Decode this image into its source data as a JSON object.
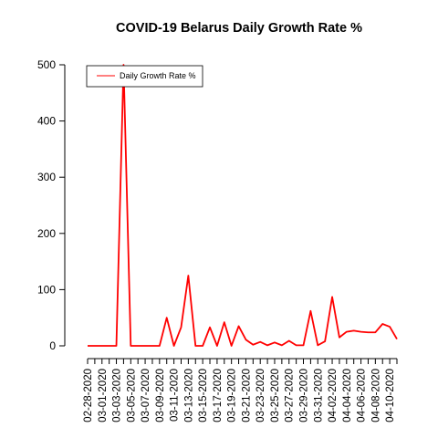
{
  "chart_data": {
    "type": "line",
    "title": "COVID-19 Belarus Daily Growth Rate %",
    "xlabel": "",
    "ylabel": "",
    "ylim": [
      0,
      500
    ],
    "yticks": [
      0,
      100,
      200,
      300,
      400,
      500
    ],
    "ytick_labels": [
      "0",
      "100",
      "200",
      "300",
      "400",
      "500"
    ],
    "xtick_labels": [
      "02-28-2020",
      "03-01-2020",
      "03-03-2020",
      "03-05-2020",
      "03-07-2020",
      "03-09-2020",
      "03-11-2020",
      "03-13-2020",
      "03-15-2020",
      "03-17-2020",
      "03-19-2020",
      "03-21-2020",
      "03-23-2020",
      "03-25-2020",
      "03-27-2020",
      "03-29-2020",
      "03-31-2020",
      "04-02-2020",
      "04-04-2020",
      "04-06-2020",
      "04-08-2020",
      "04-10-2020"
    ],
    "x": [
      "02-28-2020",
      "02-29-2020",
      "03-01-2020",
      "03-02-2020",
      "03-03-2020",
      "03-04-2020",
      "03-05-2020",
      "03-06-2020",
      "03-07-2020",
      "03-08-2020",
      "03-09-2020",
      "03-10-2020",
      "03-11-2020",
      "03-12-2020",
      "03-13-2020",
      "03-14-2020",
      "03-15-2020",
      "03-16-2020",
      "03-17-2020",
      "03-18-2020",
      "03-19-2020",
      "03-20-2020",
      "03-21-2020",
      "03-22-2020",
      "03-23-2020",
      "03-24-2020",
      "03-25-2020",
      "03-26-2020",
      "03-27-2020",
      "03-28-2020",
      "03-29-2020",
      "03-30-2020",
      "03-31-2020",
      "04-01-2020",
      "04-02-2020",
      "04-03-2020",
      "04-04-2020",
      "04-05-2020",
      "04-06-2020",
      "04-07-2020",
      "04-08-2020",
      "04-09-2020",
      "04-10-2020",
      "04-11-2020"
    ],
    "series": [
      {
        "name": "Daily Growth Rate %",
        "color": "#ff0000",
        "values": [
          0,
          0,
          0,
          0,
          0,
          500,
          0,
          0,
          0,
          0,
          0,
          50,
          0,
          33,
          125,
          0,
          0,
          33,
          0,
          42,
          0,
          35,
          11,
          2,
          7,
          1,
          6,
          1,
          9,
          1,
          1,
          62,
          1,
          8,
          87,
          15,
          25,
          27,
          25,
          24,
          24,
          39,
          34,
          12
        ]
      }
    ],
    "legend": {
      "position": "top-left",
      "entries": [
        "Daily Growth Rate %"
      ]
    }
  }
}
